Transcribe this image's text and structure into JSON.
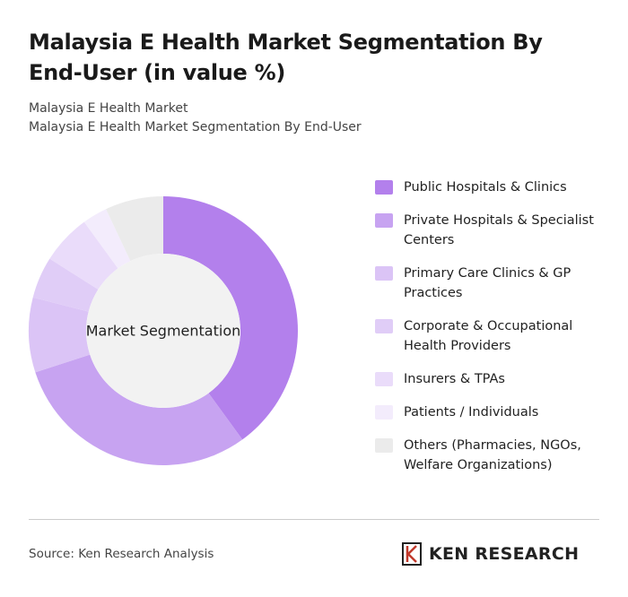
{
  "chart_data": {
    "type": "donut",
    "title": "Malaysia E Health Market Segmentation By End-User (in value %)",
    "subtitle": [
      "Malaysia E Health Market",
      "Malaysia E Health Market Segmentation By End-User"
    ],
    "center_label": "Market Segmentation",
    "categories": [
      "Public Hospitals & Clinics",
      "Private Hospitals & Specialist Centers",
      "Primary Care Clinics & GP Practices",
      "Corporate & Occupational Health Providers",
      "Insurers & TPAs",
      "Patients / Individuals",
      "Others (Pharmacies, NGOs, Welfare Organizations)"
    ],
    "values": [
      40,
      30,
      9,
      5,
      6,
      3,
      7
    ],
    "colors": [
      "#b380ec",
      "#c7a3f1",
      "#dbc4f6",
      "#e0cdf7",
      "#eadcfa",
      "#f3ecfc",
      "#ebebeb"
    ],
    "source": "Source: Ken Research Analysis",
    "brand": "KEN RESEARCH"
  }
}
